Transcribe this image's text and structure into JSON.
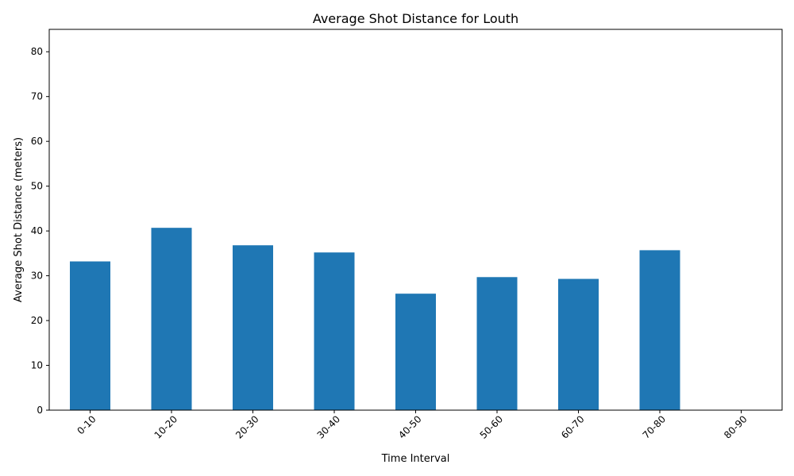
{
  "chart_data": {
    "type": "bar",
    "title": "Average Shot Distance for Louth",
    "xlabel": "Time Interval",
    "ylabel": "Average Shot Distance (meters)",
    "categories": [
      "0-10",
      "10-20",
      "20-30",
      "30-40",
      "40-50",
      "50-60",
      "60-70",
      "70-80",
      "80-90"
    ],
    "values": [
      33.2,
      40.7,
      36.8,
      35.2,
      26.0,
      29.7,
      29.3,
      35.7,
      0
    ],
    "ylim": [
      0,
      85
    ],
    "yticks": [
      0,
      10,
      20,
      30,
      40,
      50,
      60,
      70,
      80
    ],
    "bar_color": "#1f77b4",
    "grid": false,
    "legend": "none"
  }
}
